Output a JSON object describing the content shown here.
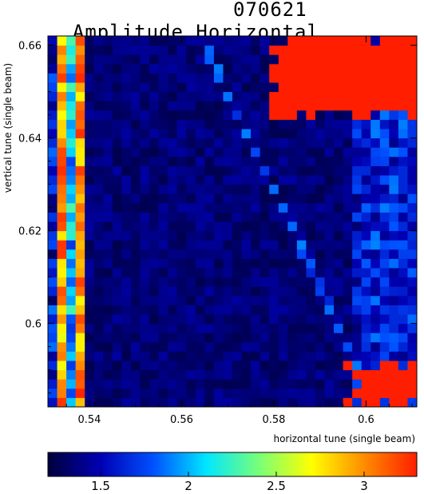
{
  "chart_data": {
    "type": "heatmap",
    "title": "Amplitude Horizontal",
    "title_overlay": "070621",
    "xlabel": "horizontal tune (single beam)",
    "ylabel": "vertical tune (single beam)",
    "xlim": [
      0.531,
      0.611
    ],
    "ylim": [
      0.582,
      0.662
    ],
    "x_ticks": [
      0.54,
      0.56,
      0.58,
      0.6
    ],
    "x_tick_labels": [
      "0.54",
      "0.56",
      "0.58",
      "0.6"
    ],
    "y_ticks": [
      0.6,
      0.62,
      0.64,
      0.66
    ],
    "y_tick_labels": [
      "0.6",
      "0.62",
      "0.64",
      "0.66"
    ],
    "grid": false,
    "grid_size": 40,
    "colorbar": {
      "range": [
        1.2,
        3.3
      ],
      "ticks": [
        1.5,
        2,
        2.5,
        3
      ],
      "tick_labels": [
        "1.5",
        "2",
        "2.5",
        "3"
      ],
      "colormap": [
        "#00003c",
        "#0000b4",
        "#0050ff",
        "#00e6ff",
        "#78ff78",
        "#ffff00",
        "#ff8c00",
        "#ff1e00"
      ]
    },
    "features": {
      "background_value": 1.25,
      "left_columns": [
        {
          "x": 0.532,
          "value": 1.9
        },
        {
          "x": 0.534,
          "value": 3.25
        },
        {
          "x": 0.536,
          "value": 2.3
        },
        {
          "x": 0.538,
          "value": 3.3
        }
      ],
      "vertical_line": {
        "x": 0.598,
        "value": 1.8
      },
      "resonance_diagonal": {
        "from": [
          0.565,
          0.66
        ],
        "to": [
          0.601,
          0.585
        ],
        "value": 1.6
      },
      "red_regions": [
        {
          "x": [
            0.579,
            0.611
          ],
          "y": [
            0.644,
            0.662
          ],
          "value": 3.3
        },
        {
          "x": [
            0.596,
            0.611
          ],
          "y": [
            0.582,
            0.592
          ],
          "value": 3.3
        }
      ]
    }
  }
}
